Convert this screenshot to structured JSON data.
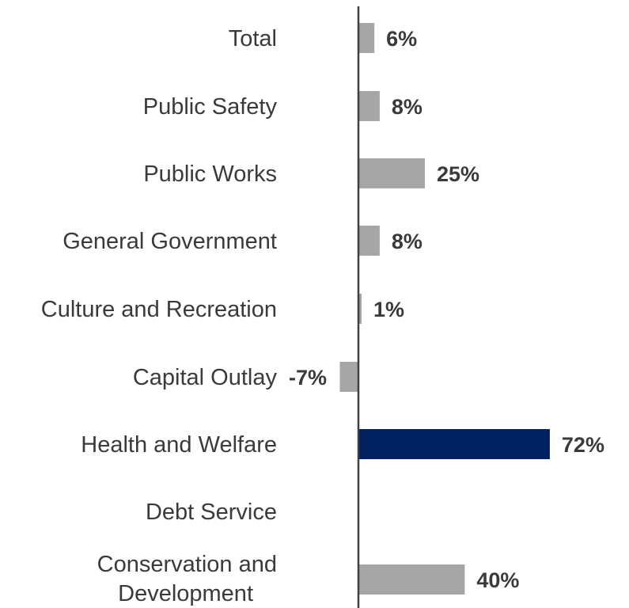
{
  "chart_data": {
    "type": "bar",
    "orientation": "horizontal",
    "categories": [
      "Total",
      "Public Safety",
      "Public Works",
      "General Government",
      "Culture and Recreation",
      "Capital Outlay",
      "Health and Welfare",
      "Debt Service",
      "Conservation and Development"
    ],
    "values": [
      6,
      8,
      25,
      8,
      1,
      -7,
      72,
      null,
      40
    ],
    "value_labels": [
      "6%",
      "8%",
      "25%",
      "8%",
      "1%",
      "-7%",
      "72%",
      "",
      "40%"
    ],
    "highlight_category": "Health and Welfare",
    "colors": {
      "bar": "#a6a6a6",
      "highlight": "#002060",
      "axis": "#404040",
      "text": "#3a3a3a"
    },
    "title": "",
    "xlabel": "",
    "ylabel": "",
    "xlim": [
      -7,
      72
    ],
    "grid": false,
    "legend": "none"
  }
}
